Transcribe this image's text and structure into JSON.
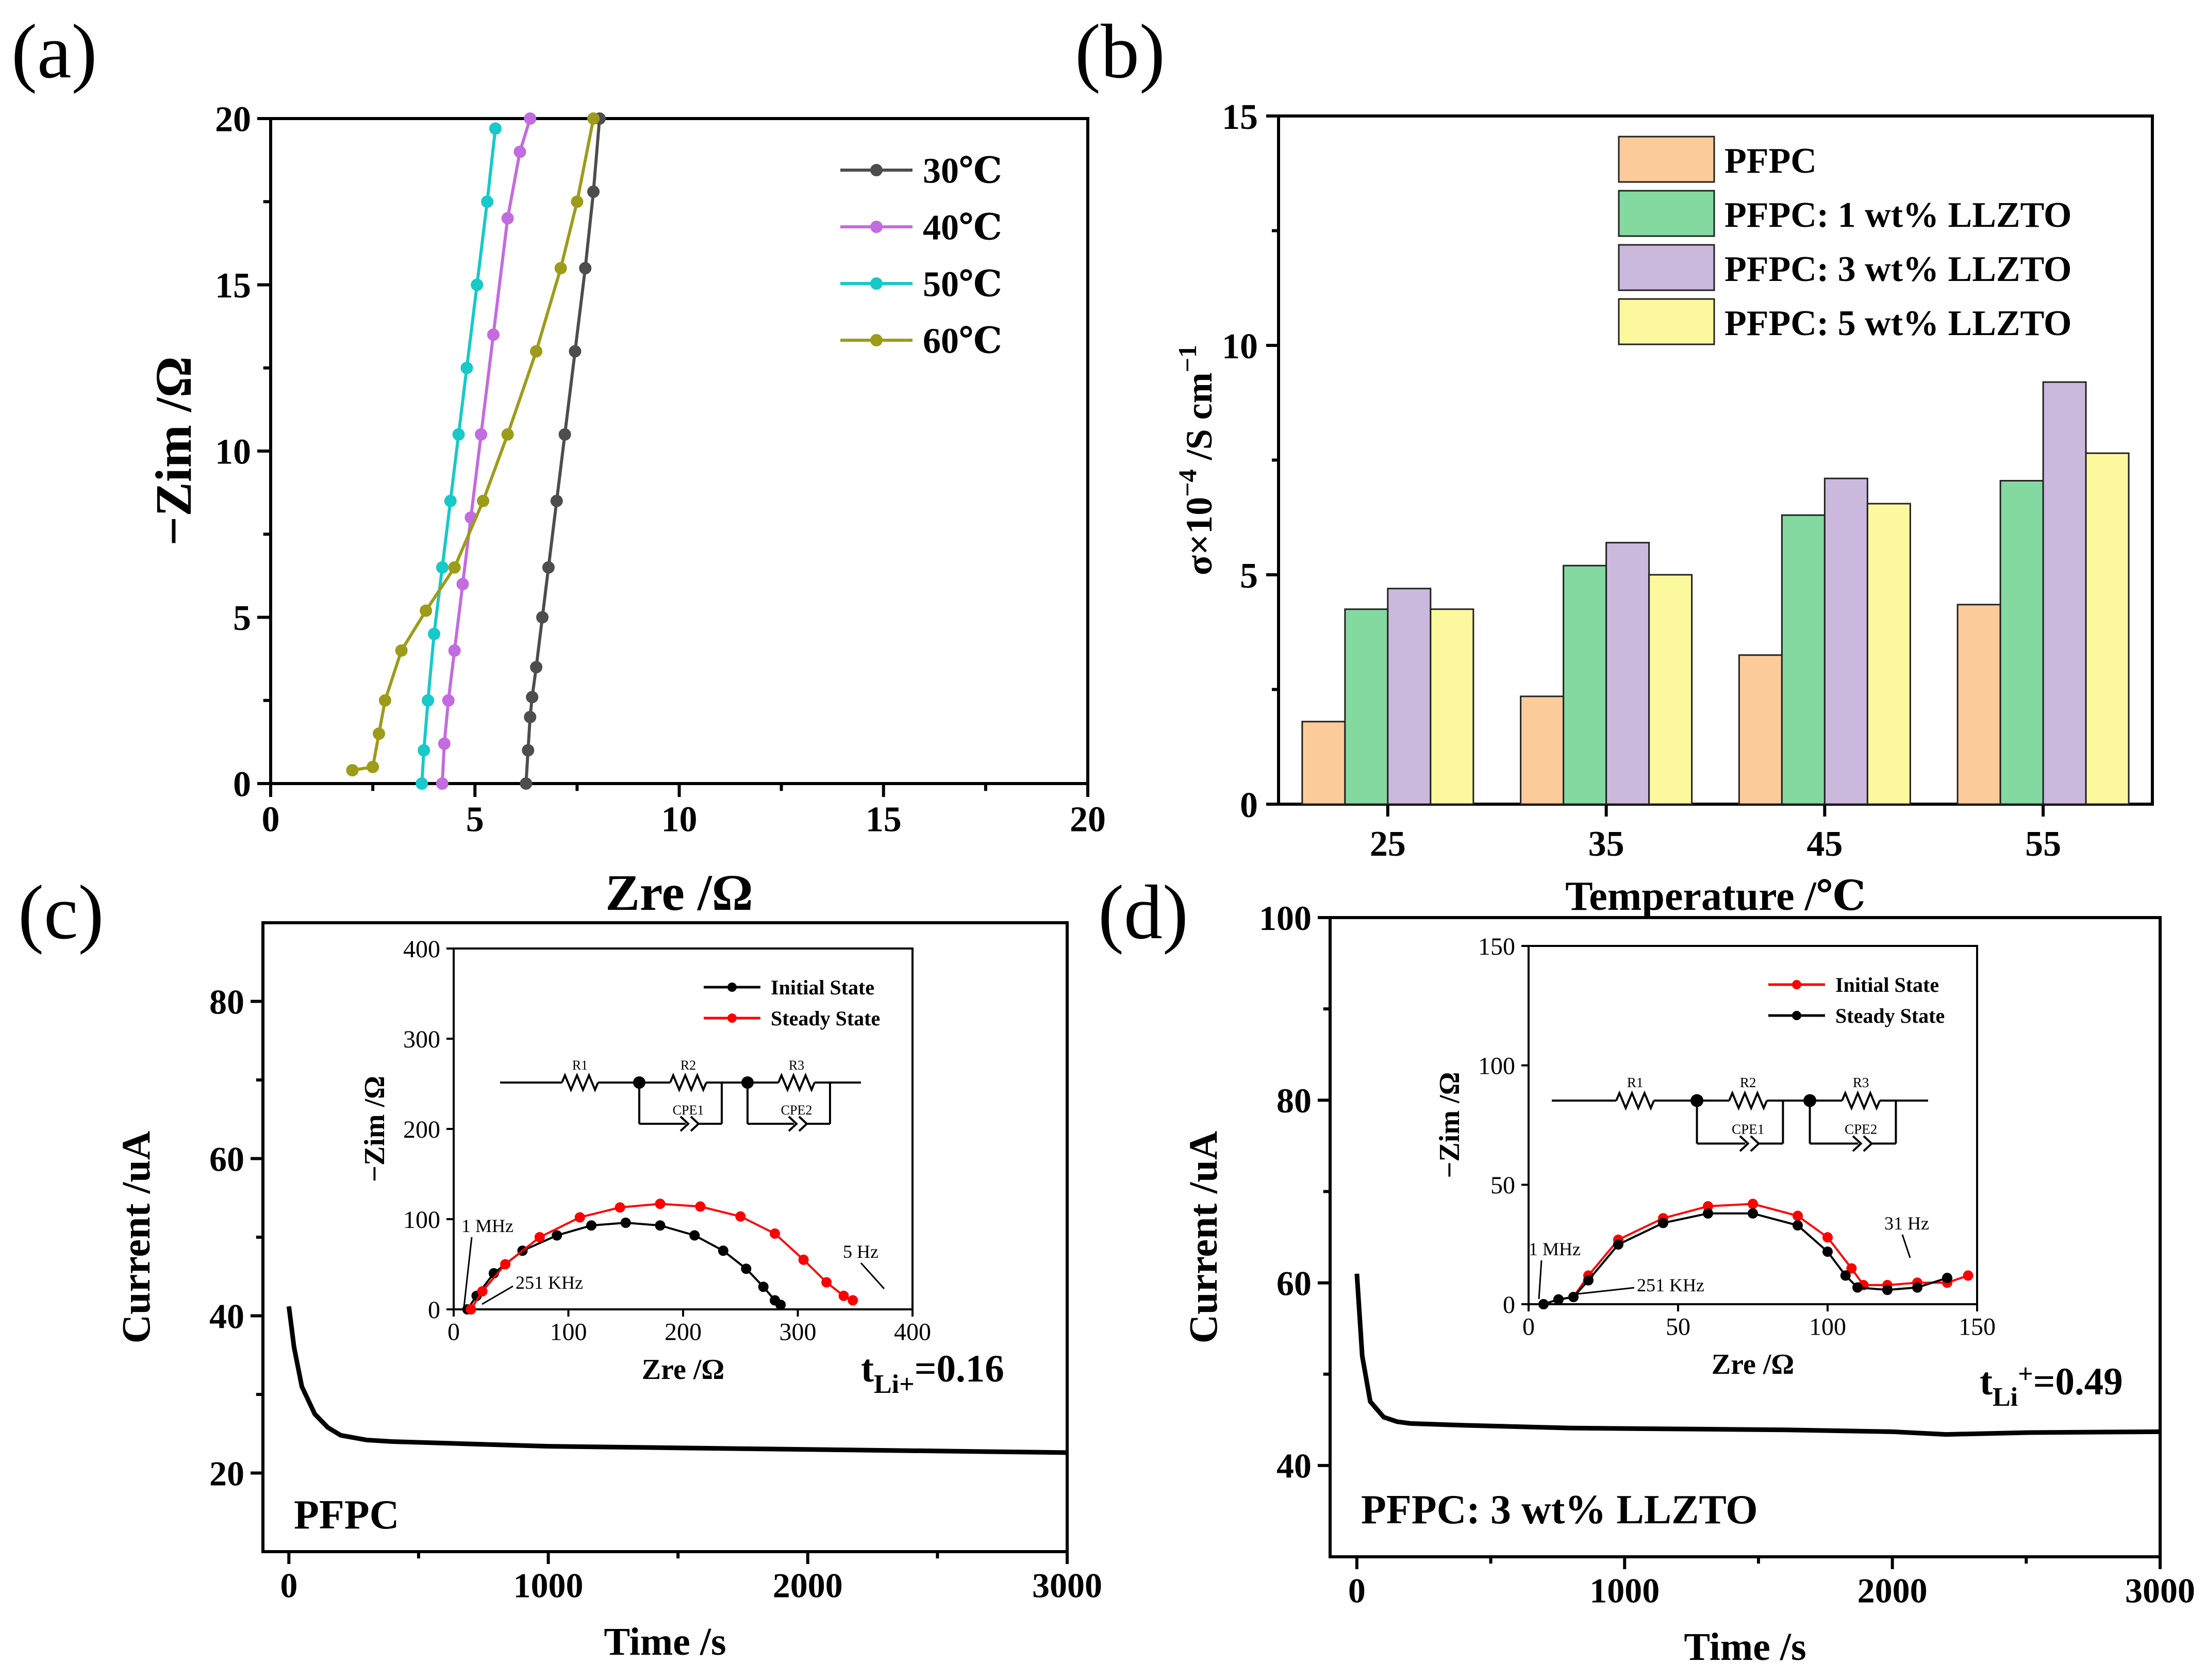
{
  "panels": {
    "a": {
      "label": "(a)"
    },
    "b": {
      "label": "(b)"
    },
    "c": {
      "label": "(c)",
      "sample": "PFPC",
      "t_li_sym": "t",
      "t_li_sub": "Li+",
      "t_li_val": "=0.16"
    },
    "d": {
      "label": "(d)",
      "sample": "PFPC: 3 wt% LLZTO",
      "t_li_sym": "t",
      "t_li_sub": "Li",
      "t_li_sup": "+",
      "t_li_val": "=0.49"
    }
  },
  "circuit": {
    "r1": "R1",
    "r2": "R2",
    "r3": "R3",
    "cpe1": "CPE1",
    "cpe2": "CPE2"
  },
  "chart_data": [
    {
      "id": "a",
      "type": "scatter",
      "title": "",
      "xlabel": "Zre /Ω",
      "ylabel": "−Zim /Ω",
      "xlim": [
        0,
        20
      ],
      "ylim": [
        0,
        20
      ],
      "xticks": [
        0,
        5,
        10,
        15,
        20
      ],
      "yticks": [
        0,
        5,
        10,
        15,
        20
      ],
      "legend": "top-right",
      "series": [
        {
          "name": "30℃",
          "color": "#4d4d4d",
          "x": [
            6.25,
            6.3,
            6.35,
            6.4,
            6.5,
            6.65,
            6.8,
            7.0,
            7.2,
            7.45,
            7.7,
            7.9,
            8.05
          ],
          "y": [
            0.0,
            1.0,
            2.0,
            2.6,
            3.5,
            5.0,
            6.5,
            8.5,
            10.5,
            13.0,
            15.5,
            17.8,
            20.0
          ]
        },
        {
          "name": "40℃",
          "color": "#c36be0",
          "x": [
            4.2,
            4.25,
            4.35,
            4.5,
            4.7,
            4.9,
            5.15,
            5.45,
            5.8,
            6.1,
            6.35
          ],
          "y": [
            0.0,
            1.2,
            2.5,
            4.0,
            6.0,
            8.0,
            10.5,
            13.5,
            17.0,
            19.0,
            20.0
          ]
        },
        {
          "name": "50℃",
          "color": "#17c9c9",
          "x": [
            3.7,
            3.75,
            3.85,
            4.0,
            4.2,
            4.4,
            4.6,
            4.8,
            5.05,
            5.3,
            5.5
          ],
          "y": [
            0.0,
            1.0,
            2.5,
            4.5,
            6.5,
            8.5,
            10.5,
            12.5,
            15.0,
            17.5,
            19.7
          ]
        },
        {
          "name": "60℃",
          "color": "#9c9c1a",
          "x": [
            2.0,
            2.5,
            2.65,
            2.8,
            3.2,
            3.8,
            4.5,
            5.2,
            5.8,
            6.5,
            7.1,
            7.5,
            7.9
          ],
          "y": [
            0.4,
            0.5,
            1.5,
            2.5,
            4.0,
            5.2,
            6.5,
            8.5,
            10.5,
            13.0,
            15.5,
            17.5,
            20.0
          ]
        }
      ]
    },
    {
      "id": "b",
      "type": "bar",
      "title": "",
      "xlabel": "Temperature /℃",
      "ylabel_main": "σ×10",
      "ylabel_sup": "−4",
      "ylabel_unit": " /S cm",
      "ylabel_sup2": "−1",
      "categories": [
        "25",
        "35",
        "45",
        "55"
      ],
      "ylim": [
        0,
        15
      ],
      "yticks": [
        0,
        5,
        10,
        15
      ],
      "legend": "top-right",
      "series": [
        {
          "name": "PFPC",
          "color": "#fccb9a",
          "values": [
            1.8,
            2.35,
            3.25,
            4.35
          ]
        },
        {
          "name": "PFPC: 1 wt% LLZTO",
          "color": "#83d9a0",
          "values": [
            4.25,
            5.2,
            6.3,
            7.05
          ]
        },
        {
          "name": "PFPC: 3 wt% LLZTO",
          "color": "#cbb8dd",
          "values": [
            4.7,
            5.7,
            7.1,
            9.2
          ]
        },
        {
          "name": "PFPC: 5 wt% LLZTO",
          "color": "#fcf89e",
          "values": [
            4.25,
            5.0,
            6.55,
            7.65
          ]
        }
      ]
    },
    {
      "id": "c",
      "type": "line",
      "title": "",
      "xlabel": "Time /s",
      "ylabel": "Current /uA",
      "xlim": [
        -100,
        3000
      ],
      "ylim": [
        10,
        90
      ],
      "xticks": [
        0,
        1000,
        2000,
        3000
      ],
      "yticks": [
        20,
        40,
        60,
        80
      ],
      "series": [
        {
          "name": "current",
          "color": "#000000",
          "x": [
            0,
            20,
            50,
            100,
            150,
            200,
            300,
            400,
            600,
            1000,
            1500,
            2000,
            2500,
            3000
          ],
          "y": [
            41.2,
            36.0,
            31.0,
            27.5,
            25.8,
            24.8,
            24.2,
            24.0,
            23.8,
            23.4,
            23.2,
            23.0,
            22.8,
            22.6
          ]
        }
      ],
      "inset": {
        "type": "scatter",
        "xlabel": "Zre /Ω",
        "ylabel": "−Zim /Ω",
        "xlim": [
          0,
          400
        ],
        "ylim": [
          0,
          400
        ],
        "xticks": [
          0,
          100,
          200,
          300,
          400
        ],
        "yticks": [
          0,
          100,
          200,
          300,
          400
        ],
        "legend": "top-right",
        "annotations": [
          "1 MHz",
          "251 KHz",
          "5 Hz"
        ],
        "series": [
          {
            "name": "Initial State",
            "color": "#000000",
            "x": [
              12,
              20,
              35,
              60,
              90,
              120,
              150,
              180,
              210,
              235,
              255,
              270,
              280,
              285
            ],
            "y": [
              0,
              15,
              40,
              65,
              82,
              93,
              96,
              93,
              82,
              65,
              45,
              25,
              10,
              5
            ]
          },
          {
            "name": "Steady State",
            "color": "#ff0000",
            "x": [
              15,
              25,
              45,
              75,
              110,
              145,
              180,
              215,
              250,
              280,
              305,
              325,
              340,
              348
            ],
            "y": [
              0,
              20,
              50,
              80,
              102,
              113,
              117,
              114,
              103,
              84,
              55,
              30,
              15,
              10
            ]
          }
        ]
      }
    },
    {
      "id": "d",
      "type": "line",
      "title": "",
      "xlabel": "Time /s",
      "ylabel": "Current /uA",
      "xlim": [
        -100,
        3000
      ],
      "ylim": [
        30,
        100
      ],
      "xticks": [
        0,
        1000,
        2000,
        3000
      ],
      "yticks": [
        40,
        60,
        80,
        100
      ],
      "series": [
        {
          "name": "current",
          "color": "#000000",
          "x": [
            0,
            20,
            50,
            100,
            150,
            200,
            400,
            800,
            1200,
            1600,
            2000,
            2200,
            2500,
            3000
          ],
          "y": [
            61.0,
            52.0,
            47.0,
            45.3,
            44.8,
            44.6,
            44.4,
            44.1,
            44.0,
            43.9,
            43.7,
            43.4,
            43.6,
            43.7
          ]
        }
      ],
      "inset": {
        "type": "scatter",
        "xlabel": "Zre /Ω",
        "ylabel": "−Zim /Ω",
        "xlim": [
          0,
          150
        ],
        "ylim": [
          0,
          150
        ],
        "xticks": [
          0,
          50,
          100,
          150
        ],
        "yticks": [
          0,
          50,
          100,
          150
        ],
        "legend": "top-right",
        "annotations": [
          "1 MHz",
          "251 KHz",
          "31 Hz"
        ],
        "series": [
          {
            "name": "Initial State",
            "color": "#ff0000",
            "x": [
              5,
              10,
              15,
              20,
              30,
              45,
              60,
              75,
              90,
              100,
              108,
              112,
              120,
              130,
              140,
              147
            ],
            "y": [
              0,
              2,
              3,
              12,
              27,
              36,
              41,
              42,
              37,
              28,
              15,
              8,
              8,
              9,
              9,
              12
            ]
          },
          {
            "name": "Steady State",
            "color": "#000000",
            "x": [
              5,
              10,
              15,
              20,
              30,
              45,
              60,
              75,
              90,
              100,
              106,
              110,
              120,
              130,
              140
            ],
            "y": [
              0,
              2,
              3,
              10,
              25,
              34,
              38,
              38,
              33,
              22,
              12,
              7,
              6,
              7,
              11
            ]
          }
        ]
      }
    }
  ]
}
